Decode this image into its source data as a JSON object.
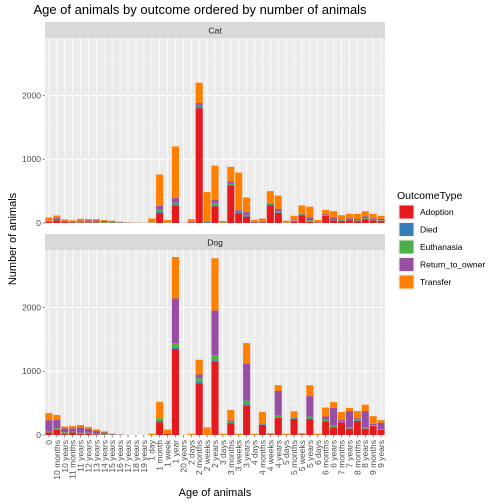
{
  "chart_data": {
    "type": "bar",
    "stacked": true,
    "title": "Age of animals by outcome ordered by number of animals",
    "xlabel": "Age of animals",
    "ylabel": "Number of animals",
    "ylim": [
      0,
      2900
    ],
    "yticks": [
      0,
      1000,
      2000
    ],
    "grid": true,
    "facet_strip_labels": [
      "Cat",
      "Dog"
    ],
    "legend": {
      "title": "OutcomeType",
      "position": "right",
      "entries": [
        "Adoption",
        "Died",
        "Euthanasia",
        "Return_to_owner",
        "Transfer"
      ]
    },
    "colors": {
      "Adoption": "#e41a1c",
      "Died": "#377eb8",
      "Euthanasia": "#4daf4a",
      "Return_to_owner": "#984ea3",
      "Transfer": "#ff7f00"
    },
    "categories": [
      "0 years",
      "1 day",
      "1 month",
      "1 week",
      "1 year",
      "2 days",
      "2 months",
      "2 weeks",
      "2 years",
      "3 days",
      "3 months",
      "3 weeks",
      "3 years",
      "4 days",
      "4 months",
      "4 weeks",
      "4 years",
      "5 days",
      "5 months",
      "5 weeks",
      "5 years",
      "6 days",
      "6 months",
      "6 years",
      "7 months",
      "7 years",
      "8 months",
      "8 years",
      "9 months",
      "9 years",
      "10 months",
      "10 years",
      "11 months",
      "11 years",
      "12 years",
      "13 years",
      "14 years",
      "15 years",
      "16 years",
      "17 years",
      "18 years",
      "19 years",
      "20 years"
    ],
    "x_tick_labels": [
      "0",
      "10 months",
      "10 years",
      "11 months",
      "11 years",
      "12 years",
      "13 years",
      "14 years",
      "15 years",
      "16 years",
      "17 years",
      "18 years",
      "19 years",
      "1 day",
      "1 month",
      "1 week",
      "1 year",
      "20 years",
      "2 days",
      "2 months",
      "2 weeks",
      "2 years",
      "3 days",
      "3 months",
      "3 weeks",
      "3 years",
      "4 days",
      "4 months",
      "4 weeks",
      "4 years",
      "5 days",
      "5 months",
      "5 weeks",
      "5 years",
      "6 days",
      "6 months",
      "6 years",
      "7 months",
      "7 years",
      "8 months",
      "8 years",
      "9 months",
      "9 years"
    ],
    "panels": [
      {
        "name": "Cat",
        "categories": [
          "0",
          "10 months",
          "10 years",
          "11 months",
          "11 years",
          "12 years",
          "13 years",
          "14 years",
          "15 years",
          "16 years",
          "17 years",
          "18 years",
          "19 years",
          "1 day",
          "1 month",
          "1 week",
          "1 year",
          "20 years",
          "2 days",
          "2 months",
          "2 weeks",
          "2 years",
          "3 days",
          "3 months",
          "3 weeks",
          "3 years",
          "4 days",
          "4 months",
          "4 weeks",
          "4 years",
          "5 days",
          "5 months",
          "5 weeks",
          "5 years",
          "6 days",
          "6 months",
          "6 years",
          "7 months",
          "7 years",
          "8 months",
          "8 years",
          "9 months",
          "9 years"
        ],
        "series": [
          {
            "name": "Adoption",
            "values": [
              20,
              40,
              15,
              12,
              10,
              10,
              8,
              5,
              5,
              2,
              1,
              1,
              0,
              0,
              160,
              0,
              270,
              0,
              10,
              1800,
              0,
              260,
              0,
              580,
              150,
              100,
              10,
              10,
              280,
              160,
              0,
              20,
              120,
              20,
              10,
              110,
              40,
              30,
              40,
              30,
              60,
              40,
              30
            ]
          },
          {
            "name": "Died",
            "values": [
              2,
              2,
              1,
              1,
              1,
              1,
              1,
              1,
              1,
              0,
              0,
              0,
              0,
              5,
              20,
              5,
              20,
              0,
              5,
              30,
              15,
              20,
              5,
              20,
              20,
              10,
              5,
              5,
              10,
              10,
              3,
              3,
              5,
              5,
              2,
              5,
              5,
              3,
              5,
              3,
              5,
              3,
              3
            ]
          },
          {
            "name": "Euthanasia",
            "values": [
              5,
              5,
              5,
              5,
              10,
              10,
              10,
              10,
              10,
              5,
              2,
              2,
              2,
              5,
              30,
              3,
              30,
              1,
              5,
              20,
              10,
              30,
              3,
              20,
              10,
              20,
              5,
              10,
              10,
              20,
              3,
              10,
              10,
              20,
              5,
              10,
              10,
              10,
              10,
              10,
              10,
              10,
              10
            ]
          },
          {
            "name": "Return_to_owner",
            "values": [
              10,
              30,
              15,
              10,
              15,
              20,
              20,
              15,
              10,
              8,
              5,
              3,
              2,
              0,
              60,
              0,
              70,
              2,
              0,
              30,
              0,
              50,
              0,
              30,
              20,
              40,
              0,
              0,
              10,
              30,
              0,
              10,
              10,
              40,
              0,
              10,
              30,
              10,
              20,
              20,
              30,
              20,
              20
            ]
          },
          {
            "name": "Transfer",
            "values": [
              50,
              40,
              20,
              15,
              30,
              20,
              20,
              15,
              10,
              5,
              3,
              2,
              1,
              60,
              490,
              40,
              810,
              2,
              40,
              320,
              460,
              540,
              25,
              230,
              590,
              230,
              30,
              45,
              190,
              210,
              30,
              70,
              130,
              170,
              30,
              70,
              100,
              70,
              70,
              80,
              80,
              70,
              50
            ]
          }
        ]
      },
      {
        "name": "Dog",
        "categories": [
          "0",
          "10 months",
          "10 years",
          "11 months",
          "11 years",
          "12 years",
          "13 years",
          "14 years",
          "15 years",
          "16 years",
          "17 years",
          "18 years",
          "19 years",
          "1 day",
          "1 month",
          "1 week",
          "1 year",
          "20 years",
          "2 days",
          "2 months",
          "2 weeks",
          "2 years",
          "3 days",
          "3 months",
          "3 weeks",
          "3 years",
          "4 days",
          "4 months",
          "4 weeks",
          "4 years",
          "5 days",
          "5 months",
          "5 weeks",
          "5 years",
          "6 days",
          "6 months",
          "6 years",
          "7 months",
          "7 years",
          "8 months",
          "8 years",
          "9 months",
          "9 years"
        ],
        "series": [
          {
            "name": "Adoption",
            "values": [
              40,
              80,
              20,
              40,
              20,
              20,
              10,
              5,
              3,
              1,
              0,
              0,
              0,
              0,
              200,
              20,
              1350,
              0,
              0,
              800,
              0,
              1150,
              0,
              180,
              0,
              460,
              0,
              160,
              10,
              270,
              0,
              250,
              10,
              250,
              0,
              210,
              120,
              200,
              100,
              220,
              100,
              140,
              80
            ]
          },
          {
            "name": "Died",
            "values": [
              3,
              5,
              3,
              3,
              2,
              2,
              2,
              1,
              1,
              0,
              0,
              0,
              0,
              0,
              20,
              3,
              20,
              0,
              0,
              30,
              0,
              20,
              0,
              10,
              0,
              20,
              0,
              10,
              0,
              10,
              0,
              10,
              0,
              10,
              0,
              10,
              5,
              5,
              5,
              5,
              5,
              5,
              3
            ]
          },
          {
            "name": "Euthanasia",
            "values": [
              20,
              20,
              20,
              10,
              15,
              15,
              10,
              10,
              5,
              3,
              1,
              0,
              0,
              0,
              40,
              3,
              70,
              0,
              0,
              60,
              0,
              80,
              0,
              20,
              0,
              60,
              0,
              10,
              0,
              30,
              0,
              10,
              0,
              30,
              0,
              20,
              20,
              15,
              20,
              20,
              20,
              10,
              10
            ]
          },
          {
            "name": "Return_to_owner",
            "values": [
              170,
              130,
              60,
              50,
              80,
              60,
              40,
              25,
              10,
              5,
              2,
              1,
              1,
              0,
              0,
              0,
              700,
              0,
              0,
              60,
              0,
              700,
              0,
              20,
              0,
              580,
              0,
              0,
              0,
              380,
              0,
              0,
              0,
              320,
              0,
              50,
              280,
              20,
              250,
              20,
              250,
              20,
              100
            ]
          },
          {
            "name": "Transfer",
            "values": [
              110,
              80,
              30,
              40,
              40,
              30,
              25,
              15,
              5,
              2,
              1,
              0,
              0,
              20,
              260,
              60,
              650,
              3,
              20,
              230,
              120,
              820,
              20,
              160,
              20,
              320,
              20,
              180,
              20,
              90,
              20,
              100,
              20,
              170,
              20,
              140,
              90,
              120,
              50,
              110,
              100,
              120,
              40
            ]
          }
        ]
      }
    ]
  }
}
